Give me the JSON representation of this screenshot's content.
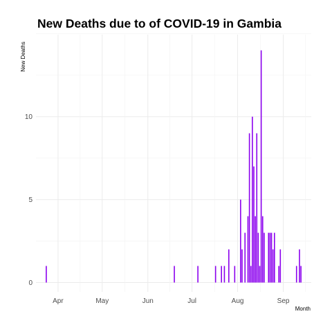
{
  "chart_data": {
    "type": "bar",
    "title": "New Deaths due to of COVID-19 in Gambia",
    "xlabel": "Month",
    "ylabel": "New Deaths",
    "x_axis": "date",
    "xlim": [
      "2020-03-17",
      "2020-09-20"
    ],
    "ylim": [
      0,
      15
    ],
    "x_tick_labels": [
      "Apr",
      "May",
      "Jun",
      "Jul",
      "Aug",
      "Sep"
    ],
    "x_tick_dates": [
      "2020-04-01",
      "2020-05-01",
      "2020-06-01",
      "2020-07-01",
      "2020-08-01",
      "2020-09-01"
    ],
    "y_ticks": [
      0,
      5,
      10
    ],
    "grid": true,
    "legend": "none",
    "bar_color": "#8b00ee",
    "points": [
      {
        "date": "2020-03-24",
        "value": 1
      },
      {
        "date": "2020-06-19",
        "value": 1
      },
      {
        "date": "2020-07-05",
        "value": 1
      },
      {
        "date": "2020-07-17",
        "value": 1
      },
      {
        "date": "2020-07-21",
        "value": 1
      },
      {
        "date": "2020-07-23",
        "value": 1
      },
      {
        "date": "2020-07-26",
        "value": 2
      },
      {
        "date": "2020-07-30",
        "value": 1
      },
      {
        "date": "2020-08-03",
        "value": 5
      },
      {
        "date": "2020-08-04",
        "value": 2
      },
      {
        "date": "2020-08-06",
        "value": 3
      },
      {
        "date": "2020-08-08",
        "value": 4
      },
      {
        "date": "2020-08-09",
        "value": 9
      },
      {
        "date": "2020-08-10",
        "value": 1
      },
      {
        "date": "2020-08-11",
        "value": 10
      },
      {
        "date": "2020-08-12",
        "value": 7
      },
      {
        "date": "2020-08-13",
        "value": 4
      },
      {
        "date": "2020-08-14",
        "value": 9
      },
      {
        "date": "2020-08-15",
        "value": 3
      },
      {
        "date": "2020-08-16",
        "value": 1
      },
      {
        "date": "2020-08-17",
        "value": 14
      },
      {
        "date": "2020-08-18",
        "value": 4
      },
      {
        "date": "2020-08-19",
        "value": 3
      },
      {
        "date": "2020-08-22",
        "value": 3
      },
      {
        "date": "2020-08-23",
        "value": 3
      },
      {
        "date": "2020-08-24",
        "value": 3
      },
      {
        "date": "2020-08-25",
        "value": 2
      },
      {
        "date": "2020-08-26",
        "value": 3
      },
      {
        "date": "2020-08-29",
        "value": 1
      },
      {
        "date": "2020-08-30",
        "value": 2
      },
      {
        "date": "2020-09-10",
        "value": 1
      },
      {
        "date": "2020-09-12",
        "value": 2
      },
      {
        "date": "2020-09-13",
        "value": 1
      }
    ]
  }
}
